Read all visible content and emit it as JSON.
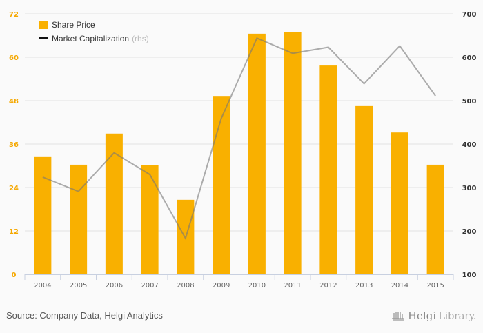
{
  "chart_data": {
    "type": "bar",
    "title": "",
    "xlabel": "",
    "categories": [
      "2004",
      "2005",
      "2006",
      "2007",
      "2008",
      "2009",
      "2010",
      "2011",
      "2012",
      "2013",
      "2014",
      "2015"
    ],
    "series": [
      {
        "name": "Share Price",
        "type": "bar",
        "axis": "left",
        "color": "#F9B000",
        "values": [
          32.6,
          30.3,
          38.9,
          30.1,
          20.6,
          49.3,
          66.5,
          66.9,
          57.7,
          46.5,
          39.2,
          30.3
        ]
      },
      {
        "name": "Market Capitalization",
        "axis_note": "(rhs)",
        "type": "line",
        "axis": "right",
        "color": "#999999",
        "values": [
          324,
          291,
          380,
          330,
          183,
          459,
          644,
          609,
          623,
          539,
          626,
          511
        ]
      }
    ],
    "y_left": {
      "ylim": [
        0,
        72
      ],
      "ticks": [
        0,
        12,
        24,
        36,
        48,
        60,
        72
      ],
      "color": "#F5A800"
    },
    "y_right": {
      "ylim": [
        100,
        700
      ],
      "ticks": [
        100,
        200,
        300,
        400,
        500,
        600,
        700
      ],
      "color": "#333333"
    },
    "grid": true,
    "legend": "top-left"
  },
  "legend": {
    "share_price": "Share Price",
    "market_cap": "Market Capitalization",
    "rhs_note": "(rhs)"
  },
  "footer": {
    "source": "Source: Company Data, Helgi Analytics",
    "logo_bold": "Helgi",
    "logo_light": "Library."
  }
}
